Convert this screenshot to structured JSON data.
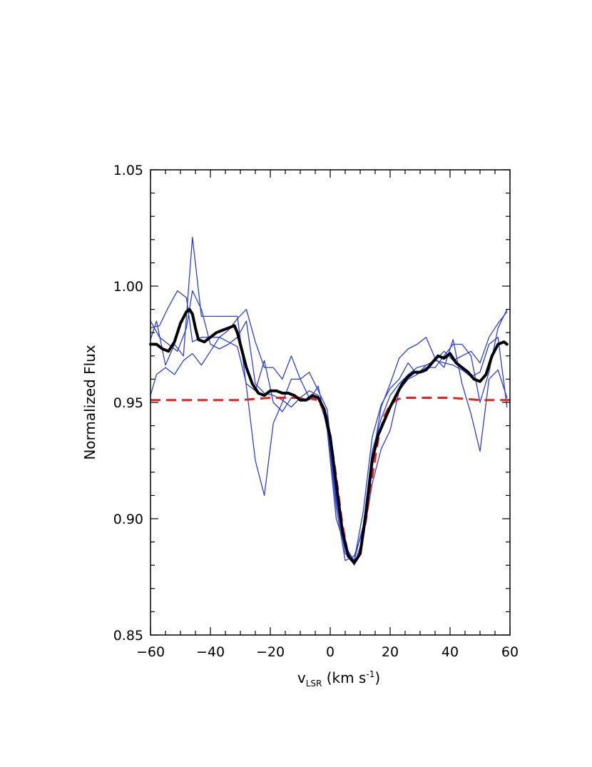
{
  "chart_data": {
    "type": "line",
    "title": "",
    "xlabel": "v",
    "xlabel_sub": "LSR",
    "xlabel_units": " (km s",
    "xlabel_sup": "-1",
    "xlabel_close": ")",
    "ylabel": "Normalized Flux",
    "xlim": [
      -60,
      60
    ],
    "ylim": [
      0.85,
      1.05
    ],
    "xticks": [
      -60,
      -40,
      -20,
      0,
      20,
      40,
      60
    ],
    "xtick_labels": [
      "−60",
      "−40",
      "−20",
      "0",
      "20",
      "40",
      "60"
    ],
    "yticks": [
      0.85,
      0.9,
      0.95,
      1.0,
      1.05
    ],
    "ytick_labels": [
      "0.85",
      "0.90",
      "0.95",
      "1.00",
      "1.05"
    ],
    "grid": false,
    "colors": {
      "observations": "#2b3fd8",
      "average": "#000000",
      "model": "#e8231e"
    },
    "series": [
      {
        "style": "thin-blue",
        "x": [
          -60,
          -57,
          -54,
          -51,
          -48,
          -46,
          -43,
          -40,
          -37,
          -34,
          -31,
          -28,
          -25,
          -22,
          -19,
          -16,
          -13,
          -10,
          -7,
          -4,
          -1,
          2,
          5,
          8,
          11,
          14,
          17,
          20,
          23,
          26,
          29,
          32,
          35,
          38,
          41,
          44,
          47,
          50,
          53,
          56,
          59
        ],
        "y": [
          0.982,
          0.983,
          0.991,
          0.998,
          0.995,
          0.976,
          0.978,
          0.978,
          0.978,
          0.976,
          0.974,
          0.958,
          0.955,
          0.968,
          0.95,
          0.946,
          0.952,
          0.952,
          0.951,
          0.957,
          0.938,
          0.9,
          0.888,
          0.882,
          0.903,
          0.935,
          0.949,
          0.956,
          0.96,
          0.967,
          0.962,
          0.966,
          0.968,
          0.972,
          0.968,
          0.97,
          0.972,
          0.967,
          0.978,
          0.984,
          0.989
        ]
      },
      {
        "style": "thin-blue",
        "x": [
          -60,
          -58,
          -55,
          -52,
          -49,
          -46,
          -43,
          -40,
          -37,
          -34,
          -31,
          -28,
          -25,
          -22,
          -19,
          -16,
          -13,
          -10,
          -7,
          -4,
          -1,
          2,
          5,
          8,
          11,
          14,
          17,
          20,
          23,
          26,
          29,
          32,
          35,
          38,
          41,
          44,
          47,
          50,
          53,
          56,
          59
        ],
        "y": [
          0.977,
          0.985,
          0.966,
          0.975,
          0.97,
          1.021,
          0.987,
          0.987,
          0.987,
          0.987,
          0.987,
          0.957,
          0.925,
          0.91,
          0.941,
          0.95,
          0.96,
          0.96,
          0.952,
          0.952,
          0.94,
          0.905,
          0.882,
          0.884,
          0.895,
          0.925,
          0.948,
          0.958,
          0.969,
          0.973,
          0.975,
          0.978,
          0.969,
          0.965,
          0.977,
          0.958,
          0.945,
          0.929,
          0.96,
          0.964,
          0.952
        ]
      },
      {
        "style": "thin-blue",
        "x": [
          -60,
          -58,
          -55,
          -52,
          -49,
          -46,
          -43,
          -40,
          -37,
          -34,
          -31,
          -28,
          -25,
          -22,
          -19,
          -16,
          -13,
          -10,
          -7,
          -4,
          -1,
          2,
          5,
          8,
          11,
          14,
          17,
          20,
          23,
          26,
          29,
          32,
          35,
          38,
          41,
          44,
          47,
          50,
          53,
          56,
          59
        ],
        "y": [
          0.953,
          0.962,
          0.965,
          0.962,
          0.968,
          0.971,
          0.966,
          0.972,
          0.978,
          0.981,
          0.986,
          0.99,
          0.976,
          0.965,
          0.965,
          0.96,
          0.97,
          0.96,
          0.963,
          0.955,
          0.947,
          0.91,
          0.889,
          0.88,
          0.892,
          0.915,
          0.93,
          0.938,
          0.955,
          0.96,
          0.962,
          0.965,
          0.965,
          0.97,
          0.975,
          0.975,
          0.97,
          0.95,
          0.963,
          0.982,
          0.99
        ]
      },
      {
        "style": "thin-blue",
        "x": [
          -60,
          -57,
          -54,
          -51,
          -48,
          -46,
          -43,
          -40,
          -37,
          -34,
          -31,
          -28,
          -25,
          -22,
          -19,
          -16,
          -13,
          -10,
          -7,
          -4,
          -1,
          2,
          5,
          8,
          11,
          14,
          17,
          20,
          23,
          26,
          29,
          32,
          35,
          38,
          41,
          44,
          47,
          50,
          53,
          56,
          59
        ],
        "y": [
          0.985,
          0.978,
          0.975,
          0.972,
          0.982,
          0.998,
          0.99,
          0.975,
          0.973,
          0.975,
          0.978,
          0.985,
          0.958,
          0.954,
          0.953,
          0.951,
          0.948,
          0.952,
          0.955,
          0.953,
          0.944,
          0.908,
          0.885,
          0.882,
          0.897,
          0.929,
          0.943,
          0.953,
          0.958,
          0.962,
          0.965,
          0.966,
          0.968,
          0.967,
          0.966,
          0.964,
          0.961,
          0.963,
          0.975,
          0.978,
          0.948
        ]
      },
      {
        "style": "thick-black",
        "x": [
          -60,
          -58,
          -56,
          -54,
          -52,
          -50,
          -48,
          -47,
          -46,
          -45,
          -44,
          -42,
          -40,
          -38,
          -36,
          -34,
          -32,
          -31,
          -30,
          -28,
          -26,
          -24,
          -22,
          -20,
          -18,
          -16,
          -14,
          -12,
          -10,
          -8,
          -6,
          -4,
          -2,
          0,
          2,
          4,
          6,
          8,
          10,
          12,
          14,
          16,
          18,
          20,
          22,
          24,
          26,
          28,
          30,
          32,
          34,
          36,
          38,
          40,
          42,
          44,
          46,
          48,
          50,
          52,
          54,
          56,
          58,
          59
        ],
        "y": [
          0.975,
          0.975,
          0.973,
          0.972,
          0.976,
          0.984,
          0.989,
          0.99,
          0.988,
          0.982,
          0.977,
          0.976,
          0.978,
          0.98,
          0.981,
          0.982,
          0.983,
          0.98,
          0.975,
          0.965,
          0.958,
          0.954,
          0.953,
          0.955,
          0.955,
          0.954,
          0.954,
          0.953,
          0.951,
          0.951,
          0.953,
          0.952,
          0.947,
          0.935,
          0.915,
          0.895,
          0.884,
          0.881,
          0.885,
          0.903,
          0.925,
          0.936,
          0.942,
          0.948,
          0.953,
          0.958,
          0.961,
          0.963,
          0.963,
          0.964,
          0.967,
          0.97,
          0.969,
          0.971,
          0.967,
          0.965,
          0.963,
          0.96,
          0.959,
          0.962,
          0.97,
          0.975,
          0.976,
          0.975
        ]
      },
      {
        "style": "dashed-red",
        "x": [
          -60,
          -50,
          -40,
          -30,
          -20,
          -12,
          -8,
          -4,
          -2,
          0,
          2,
          4,
          6,
          8,
          10,
          12,
          14,
          16,
          18,
          20,
          22,
          24,
          26,
          30,
          40,
          50,
          60
        ],
        "y": [
          0.951,
          0.951,
          0.951,
          0.951,
          0.952,
          0.952,
          0.952,
          0.951,
          0.946,
          0.936,
          0.918,
          0.898,
          0.884,
          0.881,
          0.886,
          0.9,
          0.918,
          0.934,
          0.944,
          0.949,
          0.951,
          0.952,
          0.952,
          0.952,
          0.952,
          0.951,
          0.951
        ]
      }
    ]
  }
}
